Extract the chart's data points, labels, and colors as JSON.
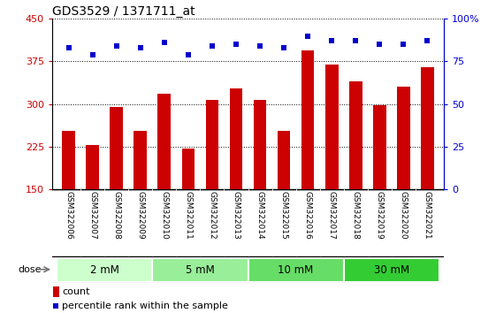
{
  "title": "GDS3529 / 1371711_at",
  "samples": [
    "GSM322006",
    "GSM322007",
    "GSM322008",
    "GSM322009",
    "GSM322010",
    "GSM322011",
    "GSM322012",
    "GSM322013",
    "GSM322014",
    "GSM322015",
    "GSM322016",
    "GSM322017",
    "GSM322018",
    "GSM322019",
    "GSM322020",
    "GSM322021"
  ],
  "bar_values": [
    253,
    228,
    295,
    253,
    318,
    222,
    308,
    328,
    308,
    253,
    395,
    370,
    340,
    298,
    330,
    365
  ],
  "percentile_values": [
    83,
    79,
    84,
    83,
    86,
    79,
    84,
    85,
    84,
    83,
    90,
    87,
    87,
    85,
    85,
    87
  ],
  "bar_color": "#cc0000",
  "dot_color": "#0000cc",
  "ylim_left": [
    150,
    450
  ],
  "ylim_right": [
    0,
    100
  ],
  "yticks_left": [
    150,
    225,
    300,
    375,
    450
  ],
  "yticks_right": [
    0,
    25,
    50,
    75,
    100
  ],
  "dose_groups": [
    {
      "label": "2 mM",
      "start": 0,
      "end": 4,
      "color": "#ccffcc"
    },
    {
      "label": "5 mM",
      "start": 4,
      "end": 8,
      "color": "#99ee99"
    },
    {
      "label": "10 mM",
      "start": 8,
      "end": 12,
      "color": "#66dd66"
    },
    {
      "label": "30 mM",
      "start": 12,
      "end": 16,
      "color": "#33cc33"
    }
  ],
  "legend_count_label": "count",
  "legend_percentile_label": "percentile rank within the sample",
  "tick_label_bg": "#c8c8c8",
  "figsize": [
    5.61,
    3.54
  ],
  "dpi": 100
}
